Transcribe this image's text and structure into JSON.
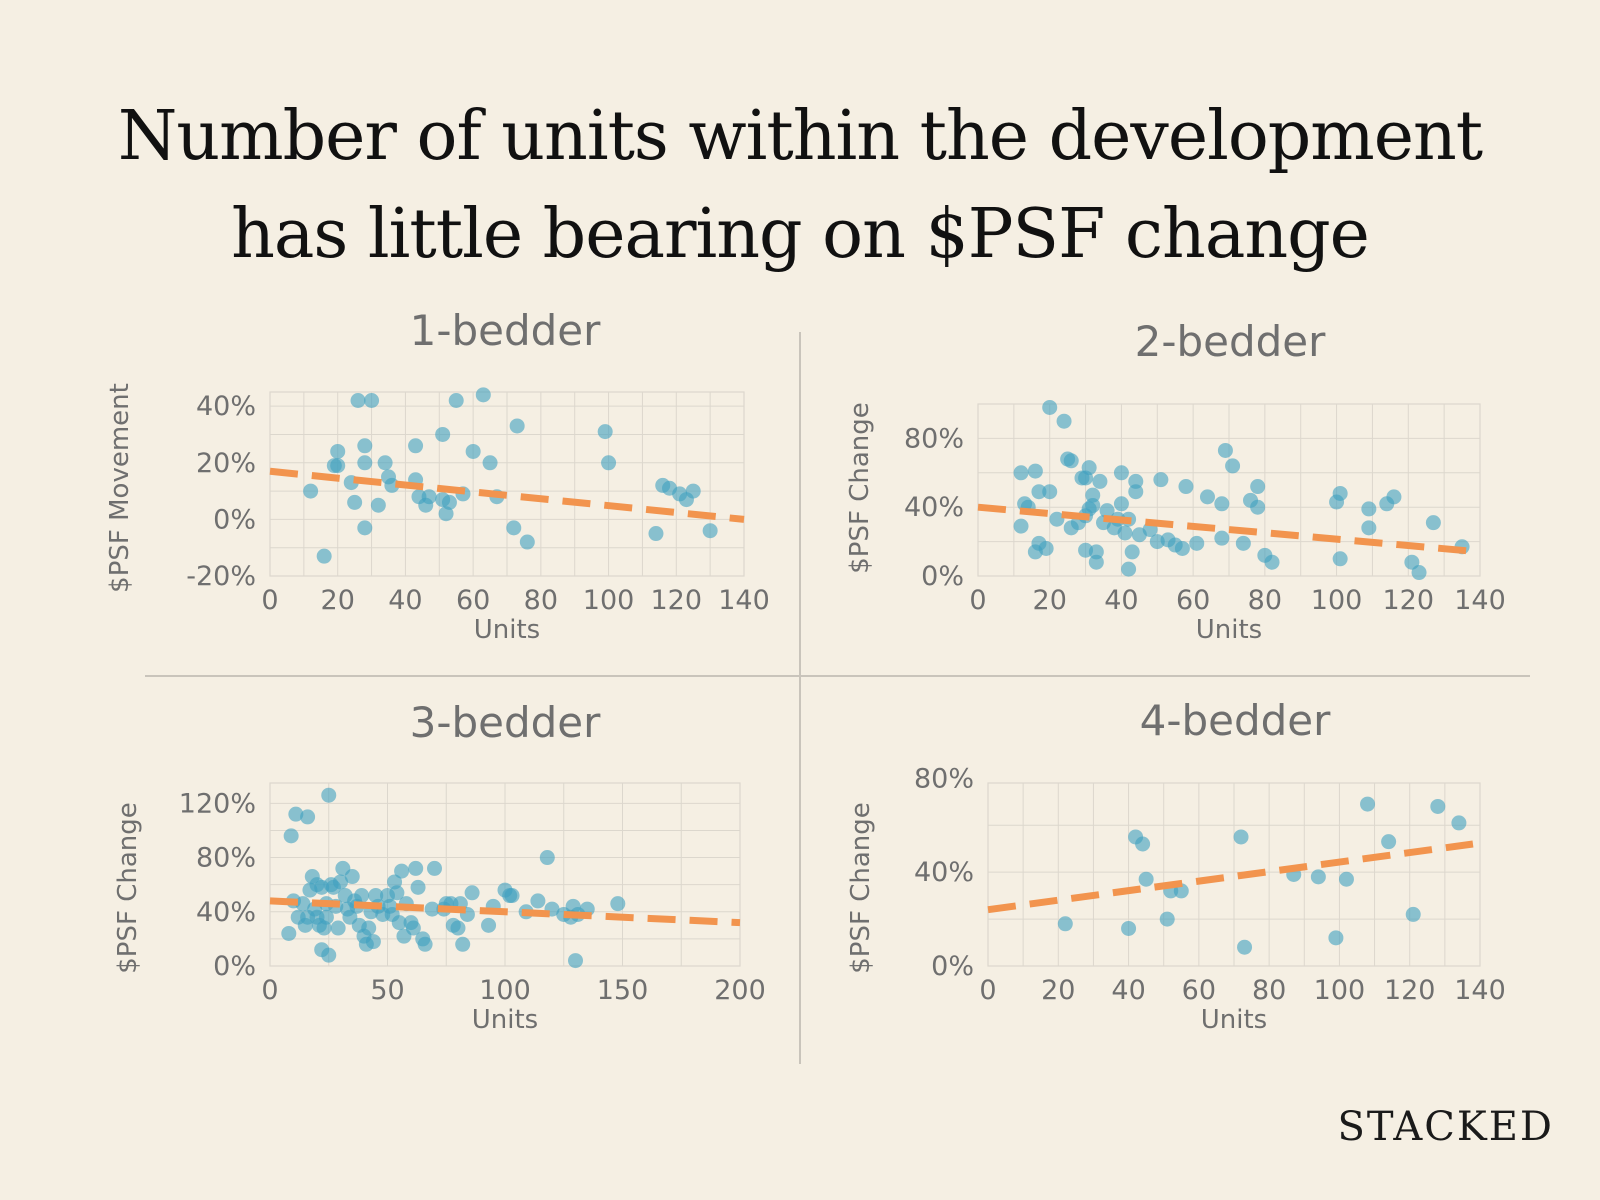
{
  "title": {
    "line1": "Number of units within the development",
    "line2": "has little bearing on $PSF change"
  },
  "brand": "STACKED",
  "colors": {
    "background": "#f5efe3",
    "points": "#3fa0bf",
    "trend": "#f2944e"
  },
  "chart_data": [
    {
      "id": "one_bed",
      "type": "scatter",
      "title": "1-bedder",
      "xlabel": "Units",
      "ylabel": "$PSF Movement",
      "xlim": [
        0,
        140
      ],
      "ylim": [
        -20,
        45
      ],
      "xticks": [
        0,
        20,
        40,
        60,
        80,
        100,
        120,
        140
      ],
      "yticks": [
        -20,
        0,
        20,
        40
      ],
      "ytick_labels": [
        "-20%",
        "0%",
        "20%",
        "40%"
      ],
      "trend": [
        [
          0,
          17
        ],
        [
          140,
          0
        ]
      ],
      "points": [
        [
          12,
          10
        ],
        [
          16,
          -13
        ],
        [
          19,
          19
        ],
        [
          20,
          19
        ],
        [
          20,
          24
        ],
        [
          24,
          13
        ],
        [
          25,
          6
        ],
        [
          26,
          42
        ],
        [
          28,
          26
        ],
        [
          28,
          20
        ],
        [
          28,
          -3
        ],
        [
          30,
          42
        ],
        [
          32,
          5
        ],
        [
          34,
          20
        ],
        [
          35,
          15
        ],
        [
          36,
          12
        ],
        [
          43,
          14
        ],
        [
          43,
          26
        ],
        [
          44,
          8
        ],
        [
          46,
          5
        ],
        [
          47,
          8
        ],
        [
          51,
          7
        ],
        [
          51,
          30
        ],
        [
          52,
          2
        ],
        [
          53,
          6
        ],
        [
          55,
          42
        ],
        [
          57,
          9
        ],
        [
          60,
          24
        ],
        [
          63,
          44
        ],
        [
          65,
          20
        ],
        [
          67,
          8
        ],
        [
          72,
          -3
        ],
        [
          73,
          33
        ],
        [
          76,
          -8
        ],
        [
          99,
          31
        ],
        [
          100,
          20
        ],
        [
          114,
          -5
        ],
        [
          116,
          12
        ],
        [
          118,
          11
        ],
        [
          121,
          9
        ],
        [
          123,
          7
        ],
        [
          125,
          10
        ],
        [
          130,
          -4
        ]
      ]
    },
    {
      "id": "two_bed",
      "type": "scatter",
      "title": "2-bedder",
      "xlabel": "Units",
      "ylabel": "$PSF Change",
      "xlim": [
        0,
        140
      ],
      "ylim": [
        0,
        100
      ],
      "xticks": [
        0,
        20,
        40,
        60,
        80,
        100,
        120,
        140
      ],
      "yticks": [
        0,
        40,
        80
      ],
      "ytick_labels": [
        "0%",
        "40%",
        "80%"
      ],
      "trend": [
        [
          0,
          40
        ],
        [
          140,
          14
        ]
      ],
      "points": [
        [
          12,
          29
        ],
        [
          12,
          60
        ],
        [
          13,
          42
        ],
        [
          14,
          40
        ],
        [
          16,
          14
        ],
        [
          16,
          61
        ],
        [
          17,
          49
        ],
        [
          17,
          19
        ],
        [
          19,
          16
        ],
        [
          20,
          49
        ],
        [
          20,
          98
        ],
        [
          22,
          33
        ],
        [
          24,
          90
        ],
        [
          25,
          68
        ],
        [
          26,
          67
        ],
        [
          26,
          28
        ],
        [
          28,
          31
        ],
        [
          29,
          57
        ],
        [
          30,
          57
        ],
        [
          30,
          15
        ],
        [
          30,
          35
        ],
        [
          31,
          39
        ],
        [
          31,
          63
        ],
        [
          32,
          47
        ],
        [
          32,
          41
        ],
        [
          33,
          8
        ],
        [
          33,
          14
        ],
        [
          34,
          55
        ],
        [
          35,
          31
        ],
        [
          36,
          38
        ],
        [
          38,
          28
        ],
        [
          39,
          33
        ],
        [
          40,
          60
        ],
        [
          40,
          42
        ],
        [
          41,
          25
        ],
        [
          42,
          4
        ],
        [
          42,
          33
        ],
        [
          43,
          14
        ],
        [
          44,
          49
        ],
        [
          44,
          55
        ],
        [
          45,
          24
        ],
        [
          48,
          27
        ],
        [
          50,
          20
        ],
        [
          51,
          56
        ],
        [
          53,
          21
        ],
        [
          55,
          18
        ],
        [
          57,
          16
        ],
        [
          58,
          52
        ],
        [
          61,
          19
        ],
        [
          64,
          46
        ],
        [
          68,
          42
        ],
        [
          68,
          22
        ],
        [
          69,
          73
        ],
        [
          71,
          64
        ],
        [
          74,
          19
        ],
        [
          76,
          44
        ],
        [
          78,
          40
        ],
        [
          78,
          52
        ],
        [
          80,
          12
        ],
        [
          82,
          8
        ],
        [
          100,
          43
        ],
        [
          101,
          48
        ],
        [
          101,
          10
        ],
        [
          109,
          39
        ],
        [
          109,
          28
        ],
        [
          114,
          42
        ],
        [
          116,
          46
        ],
        [
          121,
          8
        ],
        [
          123,
          2
        ],
        [
          127,
          31
        ],
        [
          135,
          17
        ]
      ]
    },
    {
      "id": "three_bed",
      "type": "scatter",
      "title": "3-bedder",
      "xlabel": "Units",
      "ylabel": "$PSF Change",
      "xlim": [
        0,
        200
      ],
      "ylim": [
        0,
        135
      ],
      "xticks": [
        0,
        50,
        100,
        150,
        200
      ],
      "yticks": [
        0,
        40,
        80,
        120
      ],
      "ytick_labels": [
        "0%",
        "40%",
        "80%",
        "120%"
      ],
      "trend": [
        [
          0,
          48
        ],
        [
          200,
          32
        ]
      ],
      "points": [
        [
          8,
          24
        ],
        [
          9,
          96
        ],
        [
          10,
          48
        ],
        [
          11,
          112
        ],
        [
          12,
          36
        ],
        [
          14,
          46
        ],
        [
          15,
          30
        ],
        [
          16,
          36
        ],
        [
          16,
          110
        ],
        [
          17,
          56
        ],
        [
          18,
          66
        ],
        [
          19,
          42
        ],
        [
          20,
          36
        ],
        [
          20,
          60
        ],
        [
          21,
          30
        ],
        [
          22,
          58
        ],
        [
          22,
          12
        ],
        [
          23,
          28
        ],
        [
          24,
          36
        ],
        [
          24,
          46
        ],
        [
          25,
          8
        ],
        [
          25,
          126
        ],
        [
          26,
          60
        ],
        [
          27,
          58
        ],
        [
          28,
          44
        ],
        [
          29,
          28
        ],
        [
          30,
          62
        ],
        [
          31,
          72
        ],
        [
          32,
          52
        ],
        [
          33,
          42
        ],
        [
          34,
          36
        ],
        [
          35,
          66
        ],
        [
          36,
          48
        ],
        [
          37,
          44
        ],
        [
          38,
          30
        ],
        [
          39,
          52
        ],
        [
          40,
          22
        ],
        [
          41,
          16
        ],
        [
          42,
          28
        ],
        [
          43,
          40
        ],
        [
          44,
          18
        ],
        [
          45,
          52
        ],
        [
          46,
          44
        ],
        [
          48,
          38
        ],
        [
          50,
          52
        ],
        [
          51,
          44
        ],
        [
          52,
          38
        ],
        [
          53,
          62
        ],
        [
          54,
          54
        ],
        [
          55,
          32
        ],
        [
          56,
          70
        ],
        [
          57,
          22
        ],
        [
          58,
          46
        ],
        [
          60,
          32
        ],
        [
          61,
          28
        ],
        [
          62,
          72
        ],
        [
          63,
          58
        ],
        [
          65,
          20
        ],
        [
          66,
          16
        ],
        [
          69,
          42
        ],
        [
          70,
          72
        ],
        [
          74,
          42
        ],
        [
          75,
          46
        ],
        [
          77,
          46
        ],
        [
          78,
          30
        ],
        [
          80,
          28
        ],
        [
          81,
          46
        ],
        [
          82,
          16
        ],
        [
          84,
          38
        ],
        [
          86,
          54
        ],
        [
          93,
          30
        ],
        [
          95,
          44
        ],
        [
          100,
          56
        ],
        [
          102,
          52
        ],
        [
          103,
          52
        ],
        [
          109,
          40
        ],
        [
          114,
          48
        ],
        [
          118,
          80
        ],
        [
          120,
          42
        ],
        [
          125,
          38
        ],
        [
          128,
          36
        ],
        [
          129,
          44
        ],
        [
          130,
          4
        ],
        [
          131,
          38
        ],
        [
          135,
          42
        ],
        [
          148,
          46
        ]
      ]
    },
    {
      "id": "four_bed",
      "type": "scatter",
      "title": "4-bedder",
      "xlabel": "Units",
      "ylabel": "$PSF Change",
      "xlim": [
        0,
        140
      ],
      "ylim": [
        0,
        78
      ],
      "xticks": [
        0,
        20,
        40,
        60,
        80,
        100,
        120,
        140
      ],
      "yticks": [
        0,
        40,
        80
      ],
      "ytick_labels": [
        "0%",
        "40%",
        "80%"
      ],
      "trend": [
        [
          0,
          24
        ],
        [
          138,
          52
        ]
      ],
      "points": [
        [
          22,
          18
        ],
        [
          40,
          16
        ],
        [
          42,
          55
        ],
        [
          44,
          52
        ],
        [
          45,
          37
        ],
        [
          51,
          20
        ],
        [
          52,
          32
        ],
        [
          55,
          32
        ],
        [
          72,
          55
        ],
        [
          73,
          8
        ],
        [
          87,
          39
        ],
        [
          94,
          38
        ],
        [
          99,
          12
        ],
        [
          102,
          37
        ],
        [
          108,
          69
        ],
        [
          114,
          53
        ],
        [
          121,
          22
        ],
        [
          128,
          68
        ],
        [
          134,
          61
        ]
      ]
    }
  ]
}
